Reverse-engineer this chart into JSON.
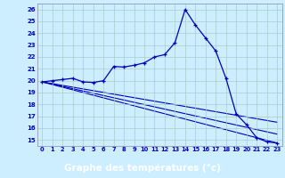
{
  "title": "Graphe des températures (°c)",
  "background_color": "#cceeff",
  "plot_bg": "#cceeff",
  "line_color": "#0000bb",
  "grid_color": "#aacccc",
  "label_bg": "#0000aa",
  "label_fg": "#ffffff",
  "ylim": [
    14.5,
    26.5
  ],
  "xlim": [
    -0.5,
    23.5
  ],
  "yticks": [
    15,
    16,
    17,
    18,
    19,
    20,
    21,
    22,
    23,
    24,
    25,
    26
  ],
  "xticks": [
    0,
    1,
    2,
    3,
    4,
    5,
    6,
    7,
    8,
    9,
    10,
    11,
    12,
    13,
    14,
    15,
    16,
    17,
    18,
    19,
    20,
    21,
    22,
    23
  ],
  "series1_x": [
    0,
    1,
    2,
    3,
    4,
    5,
    6,
    7,
    8,
    9,
    10,
    11,
    12,
    13,
    14,
    15,
    16,
    17,
    18,
    19,
    20,
    21,
    22,
    23
  ],
  "series1_y": [
    19.9,
    20.0,
    20.1,
    20.2,
    19.9,
    19.85,
    20.0,
    21.2,
    21.15,
    21.3,
    21.5,
    22.0,
    22.2,
    23.2,
    26.0,
    24.7,
    23.6,
    22.5,
    20.2,
    17.2,
    16.3,
    15.2,
    14.85,
    14.75
  ],
  "line2_x": [
    0,
    23
  ],
  "line2_y": [
    19.9,
    14.75
  ],
  "line3_x": [
    0,
    23
  ],
  "line3_y": [
    19.9,
    15.5
  ],
  "line4_x": [
    0,
    23
  ],
  "line4_y": [
    19.9,
    16.5
  ]
}
